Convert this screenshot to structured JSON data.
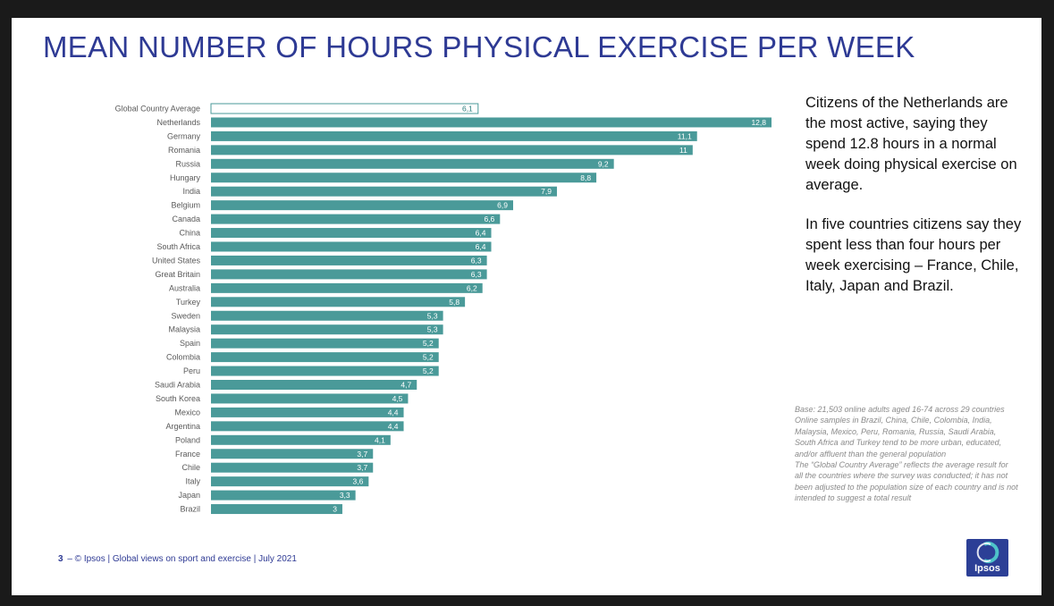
{
  "title": "MEAN NUMBER OF HOURS PHYSICAL EXERCISE PER WEEK",
  "colors": {
    "bar": "#4a9a99",
    "avg_bar_border": "#4a9a99",
    "title": "#2e3a94"
  },
  "chart_data": {
    "type": "bar",
    "orientation": "horizontal",
    "title": "MEAN NUMBER OF HOURS PHYSICAL EXERCISE PER WEEK",
    "xlim": [
      0,
      12.8
    ],
    "categories": [
      "Global Country Average",
      "Netherlands",
      "Germany",
      "Romania",
      "Russia",
      "Hungary",
      "India",
      "Belgium",
      "Canada",
      "China",
      "South Africa",
      "United States",
      "Great Britain",
      "Australia",
      "Turkey",
      "Sweden",
      "Malaysia",
      "Spain",
      "Colombia",
      "Peru",
      "Saudi Arabia",
      "South Korea",
      "Mexico",
      "Argentina",
      "Poland",
      "France",
      "Chile",
      "Italy",
      "Japan",
      "Brazil"
    ],
    "values": [
      6.1,
      12.8,
      11.1,
      11,
      9.2,
      8.8,
      7.9,
      6.9,
      6.6,
      6.4,
      6.4,
      6.3,
      6.3,
      6.2,
      5.8,
      5.3,
      5.3,
      5.2,
      5.2,
      5.2,
      4.7,
      4.5,
      4.4,
      4.4,
      4.1,
      3.7,
      3.7,
      3.6,
      3.3,
      3
    ],
    "value_labels": [
      "6,1",
      "12,8",
      "11,1",
      "11",
      "9,2",
      "8,8",
      "7,9",
      "6,9",
      "6,6",
      "6,4",
      "6,4",
      "6,3",
      "6,3",
      "6,2",
      "5,8",
      "5,3",
      "5,3",
      "5,2",
      "5,2",
      "5,2",
      "4,7",
      "4,5",
      "4,4",
      "4,4",
      "4,1",
      "3,7",
      "3,7",
      "3,6",
      "3,3",
      "3"
    ]
  },
  "side_text": {
    "paragraph1": "Citizens of the Netherlands are the most active, saying they spend 12.8 hours in a normal week doing physical exercise on average.",
    "paragraph2": "In five countries citizens say they spent less than four hours per week exercising – France, Chile, Italy, Japan and Brazil."
  },
  "notes": {
    "base": "Base: 21,503 online adults aged 16-74 across 29 countries",
    "samples": "Online samples in Brazil, China, Chile, Colombia, India, Malaysia, Mexico, Peru, Romania, Russia, Saudi Arabia, South Africa and Turkey tend to be more urban, educated, and/or affluent than the general population",
    "average": "The “Global Country Average” reflects the average result for all the countries where the survey was conducted; it has not been adjusted to the population size of each country and is not intended to suggest a total result"
  },
  "footer": {
    "page": "3",
    "text": "–  © Ipsos | Global views on sport and exercise | July 2021"
  },
  "logo": {
    "text": "Ipsos"
  }
}
